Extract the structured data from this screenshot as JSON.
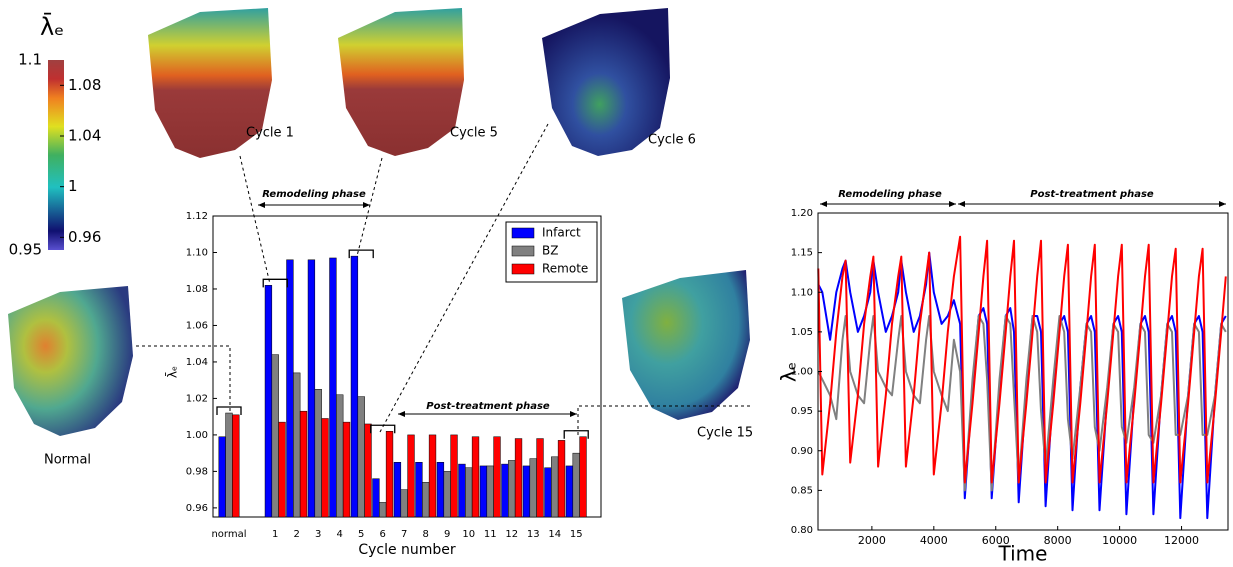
{
  "chart_data": [
    {
      "type": "bar",
      "ylabel": "λ̄ₑ",
      "xlabel": "Cycle number",
      "categories": [
        "normal",
        "1",
        "2",
        "3",
        "4",
        "5",
        "6",
        "7",
        "8",
        "9",
        "10",
        "11",
        "12",
        "13",
        "14",
        "15"
      ],
      "series": [
        {
          "name": "Infarct",
          "color": "#0000ff",
          "values": [
            0.999,
            1.082,
            1.096,
            1.096,
            1.097,
            1.098,
            0.976,
            0.985,
            0.985,
            0.985,
            0.984,
            0.983,
            0.984,
            0.983,
            0.982,
            0.983
          ]
        },
        {
          "name": "BZ",
          "color": "#808080",
          "values": [
            1.012,
            1.044,
            1.034,
            1.025,
            1.022,
            1.021,
            0.963,
            0.97,
            0.974,
            0.98,
            0.982,
            0.983,
            0.986,
            0.987,
            0.988,
            0.99
          ]
        },
        {
          "name": "Remote",
          "color": "#ff0000",
          "values": [
            1.011,
            1.007,
            1.013,
            1.009,
            1.007,
            1.006,
            1.002,
            1.0,
            1.0,
            1.0,
            0.999,
            0.999,
            0.998,
            0.998,
            0.997,
            0.999
          ]
        }
      ],
      "ylim": [
        0.955,
        1.12
      ],
      "yticks": [
        0.96,
        0.98,
        {
          "value": 1.0,
          "label": "1.00"
        },
        1.02,
        1.04,
        1.06,
        1.08,
        {
          "value": 1.1,
          "label": "1.10"
        },
        1.12
      ],
      "legend": "upper-right",
      "annotations": [
        "Remodeling phase",
        "Post-treatment phase"
      ]
    },
    {
      "type": "line",
      "ylabel": "λₑ",
      "xlabel": "Time",
      "x": [
        270,
        400,
        650,
        850,
        1050,
        1150,
        1300,
        1550,
        1750,
        1950,
        2050,
        2200,
        2450,
        2650,
        2850,
        2950,
        3100,
        3350,
        3550,
        3750,
        3850,
        4000,
        4250,
        4450,
        4650,
        4850,
        5000,
        5250,
        5450,
        5600,
        5720,
        5870,
        6120,
        6320,
        6470,
        6590,
        6740,
        6990,
        7190,
        7340,
        7460,
        7610,
        7860,
        8060,
        8210,
        8330,
        8480,
        8730,
        8930,
        9080,
        9200,
        9350,
        9600,
        9800,
        9950,
        10070,
        10220,
        10470,
        10670,
        10820,
        10940,
        11090,
        11340,
        11540,
        11690,
        11810,
        11960,
        12210,
        12410,
        12560,
        12680,
        12830,
        13080,
        13280,
        13430
      ],
      "series": [
        {
          "name": "Infarct",
          "color": "#0000ff",
          "values": [
            1.11,
            1.1,
            1.04,
            1.1,
            1.13,
            1.14,
            1.1,
            1.05,
            1.07,
            1.1,
            1.14,
            1.1,
            1.05,
            1.07,
            1.1,
            1.14,
            1.1,
            1.05,
            1.07,
            1.11,
            1.15,
            1.1,
            1.06,
            1.07,
            1.09,
            1.06,
            0.84,
            0.98,
            1.07,
            1.08,
            1.06,
            0.84,
            0.98,
            1.07,
            1.08,
            1.05,
            0.835,
            0.98,
            1.07,
            1.07,
            1.05,
            0.83,
            0.98,
            1.06,
            1.07,
            1.05,
            0.825,
            0.98,
            1.06,
            1.07,
            1.05,
            0.825,
            0.97,
            1.06,
            1.07,
            1.05,
            0.82,
            0.97,
            1.06,
            1.07,
            1.05,
            0.82,
            0.97,
            1.06,
            1.07,
            1.05,
            0.815,
            0.97,
            1.06,
            1.07,
            1.05,
            0.815,
            0.97,
            1.06,
            1.07
          ]
        },
        {
          "name": "BZ",
          "color": "#808080",
          "values": [
            1.0,
            0.99,
            0.97,
            0.94,
            1.04,
            1.07,
            1.0,
            0.97,
            0.96,
            1.04,
            1.07,
            1.0,
            0.98,
            0.97,
            1.04,
            1.07,
            1.0,
            0.97,
            0.96,
            1.04,
            1.07,
            1.0,
            0.97,
            0.95,
            1.04,
            1.0,
            0.85,
            0.99,
            1.07,
            1.06,
            0.99,
            0.85,
            0.99,
            1.07,
            1.06,
            0.97,
            0.86,
            0.99,
            1.07,
            1.05,
            0.95,
            0.88,
            0.99,
            1.07,
            1.05,
            0.94,
            0.89,
            0.98,
            1.06,
            1.05,
            0.93,
            0.9,
            0.98,
            1.06,
            1.05,
            0.93,
            0.91,
            0.98,
            1.06,
            1.05,
            0.92,
            0.91,
            0.97,
            1.06,
            1.05,
            0.92,
            0.92,
            0.97,
            1.06,
            1.05,
            0.92,
            0.92,
            0.97,
            1.06,
            1.05
          ]
        },
        {
          "name": "Remote",
          "color": "#ff0000",
          "values": [
            1.13,
            0.87,
            0.96,
            1.05,
            1.12,
            1.14,
            0.885,
            0.97,
            1.06,
            1.12,
            1.145,
            0.88,
            0.97,
            1.06,
            1.12,
            1.145,
            0.88,
            0.97,
            1.06,
            1.12,
            1.15,
            0.87,
            0.96,
            1.05,
            1.12,
            1.17,
            0.86,
            0.96,
            1.05,
            1.12,
            1.165,
            0.86,
            0.96,
            1.05,
            1.12,
            1.165,
            0.86,
            0.96,
            1.05,
            1.12,
            1.165,
            0.86,
            0.96,
            1.05,
            1.12,
            1.16,
            0.86,
            0.96,
            1.05,
            1.12,
            1.16,
            0.86,
            0.96,
            1.05,
            1.12,
            1.16,
            0.86,
            0.96,
            1.05,
            1.12,
            1.16,
            0.86,
            0.96,
            1.05,
            1.12,
            1.155,
            0.86,
            0.96,
            1.05,
            1.12,
            1.155,
            0.86,
            0.96,
            1.05,
            1.12
          ]
        }
      ],
      "xlim": [
        260,
        13500
      ],
      "xticks": [
        2000,
        4000,
        6000,
        8000,
        10000,
        12000
      ],
      "ylim": [
        0.8,
        1.2
      ],
      "yticks": [
        {
          "value": 0.8,
          "label": "0.80"
        },
        0.85,
        {
          "value": 0.9,
          "label": "0.90"
        },
        0.95,
        {
          "value": 1.0,
          "label": "1.00"
        },
        1.05,
        {
          "value": 1.1,
          "label": "1.10"
        },
        1.15,
        {
          "value": 1.2,
          "label": "1.20"
        }
      ],
      "annotations": [
        "Remodeling phase",
        "Post-treatment phase"
      ]
    }
  ],
  "colorbar": {
    "title": "λ̄ₑ",
    "lim": [
      0.95,
      1.1
    ],
    "ticks": [
      0.96,
      1,
      1.04,
      1.08
    ]
  },
  "heart_labels": [
    "Cycle 1",
    "Cycle 5",
    "Cycle 6",
    "Normal",
    "Cycle 15"
  ]
}
